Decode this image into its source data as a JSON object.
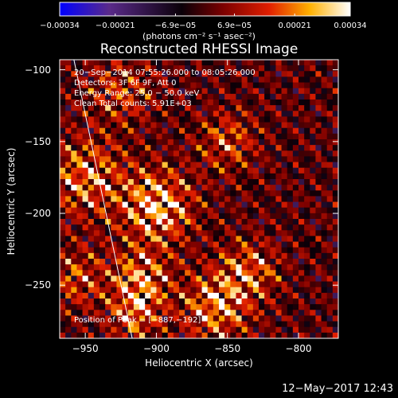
{
  "chart_data": {
    "type": "heatmap",
    "title": "Reconstructed RHESSI Image",
    "xlabel": "Heliocentric X (arcsec)",
    "ylabel": "Heliocentric Y (arcsec)",
    "xlim": [
      -968,
      -772
    ],
    "ylim": [
      -287,
      -93
    ],
    "x_ticks": [
      -950,
      -900,
      -850,
      -800
    ],
    "x_tick_labels": [
      "−950",
      "−900",
      "−850",
      "−800"
    ],
    "y_ticks": [
      -100,
      -150,
      -200,
      -250
    ],
    "y_tick_labels": [
      "−100",
      "−150",
      "−200",
      "−250"
    ],
    "colorbar": {
      "range": [
        -0.00034,
        0.00034
      ],
      "ticks": [
        -0.00034,
        -0.00021,
        -6.9e-05,
        6.9e-05,
        0.00021,
        0.00034
      ],
      "tick_labels": [
        "−0.00034",
        "−0.00021",
        "−6.9e−05",
        "6.9e−05",
        "0.00021",
        "0.00034"
      ],
      "unit": "(photons cm⁻² s⁻¹ asec⁻²)",
      "colormap": [
        "#0000ff",
        "#5a2a8a",
        "#0a0008",
        "#7a0000",
        "#e01e00",
        "#ffb000",
        "#ffffff"
      ]
    },
    "annotations": {
      "time": "20−Sep−2014 07:55:26.000 to 08:05:26.000",
      "detectors": "Detectors: 3F 6F 9F, Att 0",
      "energy": "Energy Range: 25.0 − 50.0 keV",
      "method": "Clean     Total counts: 5.91E+03",
      "peak": "Position of Peak = [−887,−192]"
    },
    "limb_line": [
      [
        -958,
        -93
      ],
      [
        -917,
        -287
      ]
    ],
    "sources": [
      {
        "x": -900,
        "y": -195,
        "sigma": 17,
        "amp": 0.00034
      },
      {
        "x": -910,
        "y": -245,
        "sigma": 14,
        "amp": 0.00026
      },
      {
        "x": -915,
        "y": -270,
        "sigma": 12,
        "amp": 0.00024
      },
      {
        "x": -858,
        "y": -265,
        "sigma": 16,
        "amp": 0.00028
      },
      {
        "x": -835,
        "y": -240,
        "sigma": 14,
        "amp": 0.00022
      },
      {
        "x": -850,
        "y": -150,
        "sigma": 14,
        "amp": 0.00018
      },
      {
        "x": -950,
        "y": -175,
        "sigma": 18,
        "amp": 0.00025
      },
      {
        "x": -955,
        "y": -245,
        "sigma": 14,
        "amp": 0.00018
      },
      {
        "x": -925,
        "y": -115,
        "sigma": 16,
        "amp": 0.00016
      }
    ],
    "grid": false
  },
  "footer": {
    "date": "12−May−2017 12:43"
  }
}
